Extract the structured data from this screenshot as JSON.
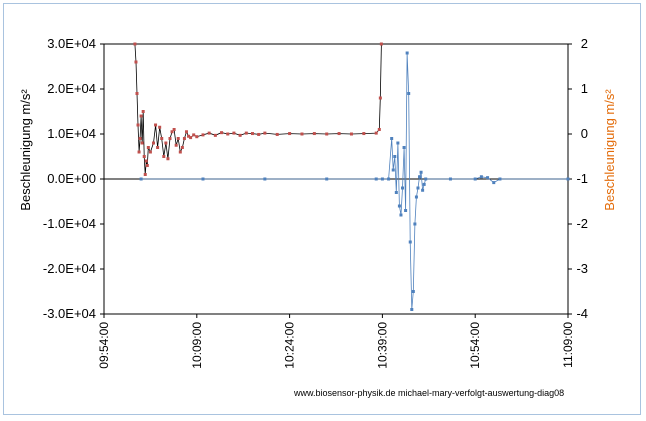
{
  "chart_data": {
    "type": "line",
    "title": "",
    "ylabel": "Beschleunigung  m/s²",
    "y2label": "Beschleunigung m/s²",
    "ylabel_color": "#000000",
    "y2label_color": "#e36c0a",
    "ylim": [
      -30000,
      30000
    ],
    "y2lim": [
      -4,
      2
    ],
    "yticks": [
      "3.0E+04",
      "2.0E+04",
      "1.0E+04",
      "0.0E+00",
      "-1.0E+04",
      "-2.0E+04",
      "-3.0E+04"
    ],
    "y2ticks": [
      "2",
      "1",
      "0",
      "-1",
      "-2",
      "-3",
      "-4"
    ],
    "xlim": [
      "09:54:00",
      "11:09:00"
    ],
    "xticks": [
      "09:54:00",
      "10:09:00",
      "10:24:00",
      "10:39:00",
      "10:54:00",
      "11:09:00"
    ],
    "grid": false,
    "legend": "none",
    "credit": "www.biosensor-physik.de   michael-mary-verfolgt-auswertung-diag08",
    "series": [
      {
        "axis": "primary",
        "color": "#4f81bd",
        "points": [
          [
            "10:00:00",
            0
          ],
          [
            "10:10:00",
            0
          ],
          [
            "10:20:00",
            0
          ],
          [
            "10:30:00",
            0
          ],
          [
            "10:38:00",
            0
          ],
          [
            "10:39:00",
            0
          ],
          [
            "10:40:00",
            0
          ],
          [
            "10:40:30",
            9000
          ],
          [
            "10:40:45",
            2000
          ],
          [
            "10:41:00",
            5000
          ],
          [
            "10:41:15",
            -3000
          ],
          [
            "10:41:30",
            8000
          ],
          [
            "10:41:45",
            -6000
          ],
          [
            "10:42:00",
            -8000
          ],
          [
            "10:42:15",
            -2000
          ],
          [
            "10:42:30",
            7000
          ],
          [
            "10:42:45",
            -7000
          ],
          [
            "10:43:00",
            28000
          ],
          [
            "10:43:15",
            19000
          ],
          [
            "10:43:30",
            -14000
          ],
          [
            "10:43:45",
            -29000
          ],
          [
            "10:44:00",
            -25000
          ],
          [
            "10:44:15",
            -10000
          ],
          [
            "10:44:30",
            -4000
          ],
          [
            "10:44:45",
            -2000
          ],
          [
            "10:45:00",
            500
          ],
          [
            "10:45:15",
            1500
          ],
          [
            "10:45:30",
            -2500
          ],
          [
            "10:45:45",
            -1200
          ],
          [
            "10:46:00",
            0
          ],
          [
            "10:50:00",
            0
          ],
          [
            "10:54:00",
            0
          ],
          [
            "10:55:00",
            500
          ],
          [
            "10:56:00",
            300
          ],
          [
            "10:57:00",
            -800
          ],
          [
            "10:58:00",
            0
          ],
          [
            "11:09:00",
            0
          ]
        ]
      },
      {
        "axis": "secondary",
        "color": "#c0504d",
        "points": [
          [
            "09:59:00",
            2
          ],
          [
            "09:59:10",
            1.6
          ],
          [
            "09:59:20",
            0.9
          ],
          [
            "09:59:30",
            0.2
          ],
          [
            "09:59:40",
            -0.4
          ],
          [
            "09:59:50",
            -0.1
          ],
          [
            "10:00:00",
            0.4
          ],
          [
            "10:00:10",
            -0.2
          ],
          [
            "10:00:20",
            0.5
          ],
          [
            "10:00:30",
            -0.5
          ],
          [
            "10:00:40",
            -0.9
          ],
          [
            "10:00:50",
            -0.6
          ],
          [
            "10:01:00",
            -0.7
          ],
          [
            "10:01:10",
            -0.3
          ],
          [
            "10:01:30",
            -0.4
          ],
          [
            "10:02:00",
            -0.2
          ],
          [
            "10:02:20",
            0.2
          ],
          [
            "10:02:40",
            -0.3
          ],
          [
            "10:03:00",
            0.15
          ],
          [
            "10:03:20",
            -0.1
          ],
          [
            "10:03:40",
            -0.5
          ],
          [
            "10:04:00",
            -0.2
          ],
          [
            "10:04:20",
            -0.55
          ],
          [
            "10:04:40",
            -0.1
          ],
          [
            "10:05:00",
            0.05
          ],
          [
            "10:05:20",
            0.1
          ],
          [
            "10:05:40",
            -0.25
          ],
          [
            "10:06:00",
            -0.1
          ],
          [
            "10:06:20",
            -0.4
          ],
          [
            "10:06:40",
            -0.3
          ],
          [
            "10:07:00",
            -0.1
          ],
          [
            "10:07:20",
            0.05
          ],
          [
            "10:07:40",
            -0.05
          ],
          [
            "10:08:00",
            -0.08
          ],
          [
            "10:08:30",
            -0.02
          ],
          [
            "10:09:00",
            -0.06
          ],
          [
            "10:10:00",
            -0.02
          ],
          [
            "10:11:00",
            0.02
          ],
          [
            "10:12:00",
            -0.03
          ],
          [
            "10:13:00",
            0.03
          ],
          [
            "10:14:00",
            0.0
          ],
          [
            "10:15:00",
            0.02
          ],
          [
            "10:16:00",
            -0.03
          ],
          [
            "10:17:00",
            0.02
          ],
          [
            "10:18:00",
            0.01
          ],
          [
            "10:19:00",
            -0.01
          ],
          [
            "10:20:00",
            0.02
          ],
          [
            "10:22:00",
            -0.01
          ],
          [
            "10:24:00",
            0.01
          ],
          [
            "10:26:00",
            0.0
          ],
          [
            "10:28:00",
            0.01
          ],
          [
            "10:30:00",
            0.0
          ],
          [
            "10:32:00",
            0.01
          ],
          [
            "10:34:00",
            0.0
          ],
          [
            "10:36:00",
            0.01
          ],
          [
            "10:38:00",
            0.02
          ],
          [
            "10:38:30",
            0.1
          ],
          [
            "10:38:40",
            0.8
          ],
          [
            "10:38:50",
            2
          ]
        ]
      }
    ]
  }
}
